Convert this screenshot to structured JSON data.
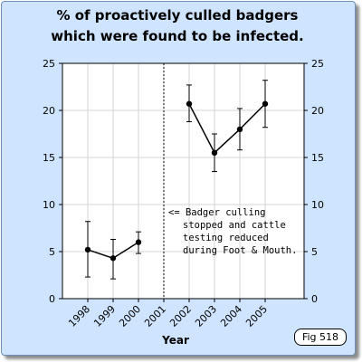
{
  "chart_data": {
    "type": "line",
    "title_lines": [
      "% of proactively culled badgers",
      "which were found to be infected."
    ],
    "xlabel": "Year",
    "ylabel": "",
    "ylim": [
      0,
      25
    ],
    "yticks": [
      0,
      5,
      10,
      15,
      20,
      25
    ],
    "x_categories": [
      "1998",
      "1999",
      "2000",
      "2001",
      "2002",
      "2003",
      "2004",
      "2005"
    ],
    "grid": true,
    "segments": [
      {
        "points": [
          {
            "year": "1998",
            "value": 5.2,
            "err_low": 2.3,
            "err_high": 8.2
          },
          {
            "year": "1999",
            "value": 4.3,
            "err_low": 2.1,
            "err_high": 6.3
          },
          {
            "year": "2000",
            "value": 6.0,
            "err_low": 4.8,
            "err_high": 7.1
          }
        ]
      },
      {
        "points": [
          {
            "year": "2002",
            "value": 20.7,
            "err_low": 18.8,
            "err_high": 22.7
          },
          {
            "year": "2003",
            "value": 15.5,
            "err_low": 13.5,
            "err_high": 17.5
          },
          {
            "year": "2004",
            "value": 18.0,
            "err_low": 15.8,
            "err_high": 20.2
          },
          {
            "year": "2005",
            "value": 20.7,
            "err_low": 18.2,
            "err_high": 23.2
          }
        ]
      }
    ],
    "divider_after_year": "2001",
    "annotation_lines": [
      "<= Badger culling",
      "stopped and cattle",
      "testing reduced",
      "during Foot & Mouth."
    ],
    "figure_label": "Fig 518"
  }
}
